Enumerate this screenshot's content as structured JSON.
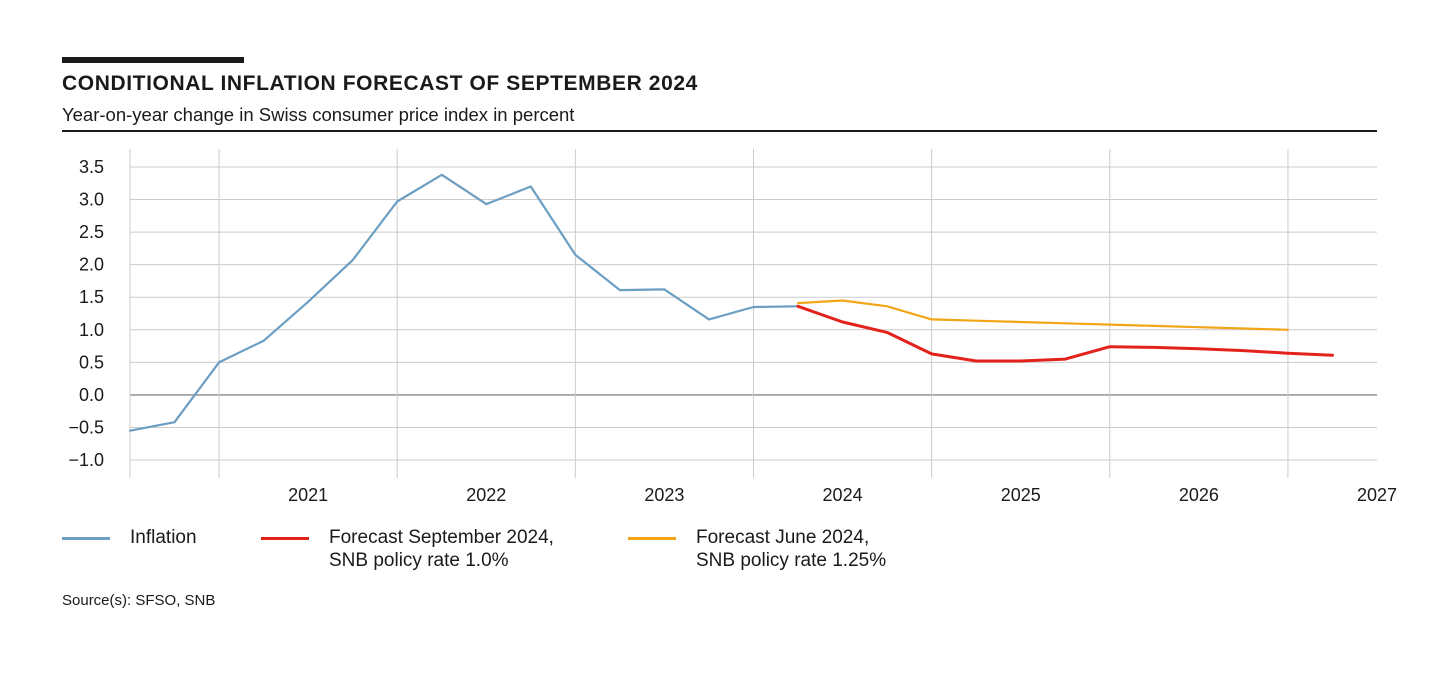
{
  "header": {
    "title": "CONDITIONAL INFLATION FORECAST OF SEPTEMBER 2024",
    "subtitle": "Year-on-year change in Swiss consumer price index in percent"
  },
  "footer": {
    "source": "Source(s): SFSO, SNB"
  },
  "legend": {
    "inflation": {
      "line1": "Inflation",
      "line2": ""
    },
    "forecast_sep": {
      "line1": "Forecast September 2024,",
      "line2": "SNB policy rate 1.0%"
    },
    "forecast_jun": {
      "line1": "Forecast June 2024,",
      "line2": "SNB policy rate 1.25%"
    }
  },
  "chart_data": {
    "type": "line",
    "title": "CONDITIONAL INFLATION FORECAST OF SEPTEMBER 2024",
    "subtitle": "Year-on-year change in Swiss consumer price index in percent",
    "x_unit": "quarter",
    "xlim": [
      "2020-Q3",
      "2027-Q3"
    ],
    "ylim": [
      -1.0,
      3.5
    ],
    "y_ticks": [
      3.5,
      3.0,
      2.5,
      2.0,
      1.5,
      1.0,
      0.5,
      0.0,
      -0.5,
      -1.0
    ],
    "y_tick_labels": [
      "3.5",
      "3.0",
      "2.5",
      "2.0",
      "1.5",
      "1.0",
      "0.5",
      "0.0",
      "−0.5",
      "−1.0"
    ],
    "x_tick_labels": [
      "2021",
      "2022",
      "2023",
      "2024",
      "2025",
      "2026",
      "2027"
    ],
    "grid": true,
    "legend_position": "bottom",
    "colors": {
      "inflation": "#6b9ec2",
      "forecast_sep": "#e3221c",
      "forecast_jun": "#f2a516",
      "grid": "#cccccc",
      "zero": "#999999"
    },
    "series": [
      {
        "name": "Inflation",
        "color": "#6b9ec2",
        "x": [
          "2020-Q3",
          "2020-Q4",
          "2021-Q1",
          "2021-Q2",
          "2021-Q3",
          "2021-Q4",
          "2022-Q1",
          "2022-Q2",
          "2022-Q3",
          "2022-Q4",
          "2023-Q1",
          "2023-Q2",
          "2023-Q3",
          "2023-Q4",
          "2024-Q1",
          "2024-Q2"
        ],
        "values": [
          -0.55,
          -0.42,
          0.5,
          0.83,
          1.43,
          2.07,
          2.97,
          3.38,
          2.93,
          3.2,
          2.15,
          1.61,
          1.62,
          1.16,
          1.35,
          1.36
        ]
      },
      {
        "name": "Forecast September 2024, SNB policy rate 1.0%",
        "color": "#e3221c",
        "x": [
          "2024-Q2",
          "2024-Q3",
          "2024-Q4",
          "2025-Q1",
          "2025-Q2",
          "2025-Q3",
          "2025-Q4",
          "2026-Q1",
          "2026-Q2",
          "2026-Q3",
          "2026-Q4",
          "2027-Q1",
          "2027-Q2"
        ],
        "values": [
          1.36,
          1.12,
          0.96,
          0.63,
          0.52,
          0.52,
          0.55,
          0.74,
          0.73,
          0.71,
          0.68,
          0.64,
          0.61
        ]
      },
      {
        "name": "Forecast June 2024, SNB policy rate 1.25%",
        "color": "#f2a516",
        "x": [
          "2024-Q2",
          "2024-Q3",
          "2024-Q4",
          "2025-Q1",
          "2025-Q2",
          "2025-Q3",
          "2025-Q4",
          "2026-Q1",
          "2026-Q2",
          "2026-Q3",
          "2026-Q4",
          "2027-Q1"
        ],
        "values": [
          1.41,
          1.45,
          1.36,
          1.16,
          1.14,
          1.12,
          1.1,
          1.08,
          1.06,
          1.04,
          1.02,
          1.0
        ]
      }
    ]
  }
}
